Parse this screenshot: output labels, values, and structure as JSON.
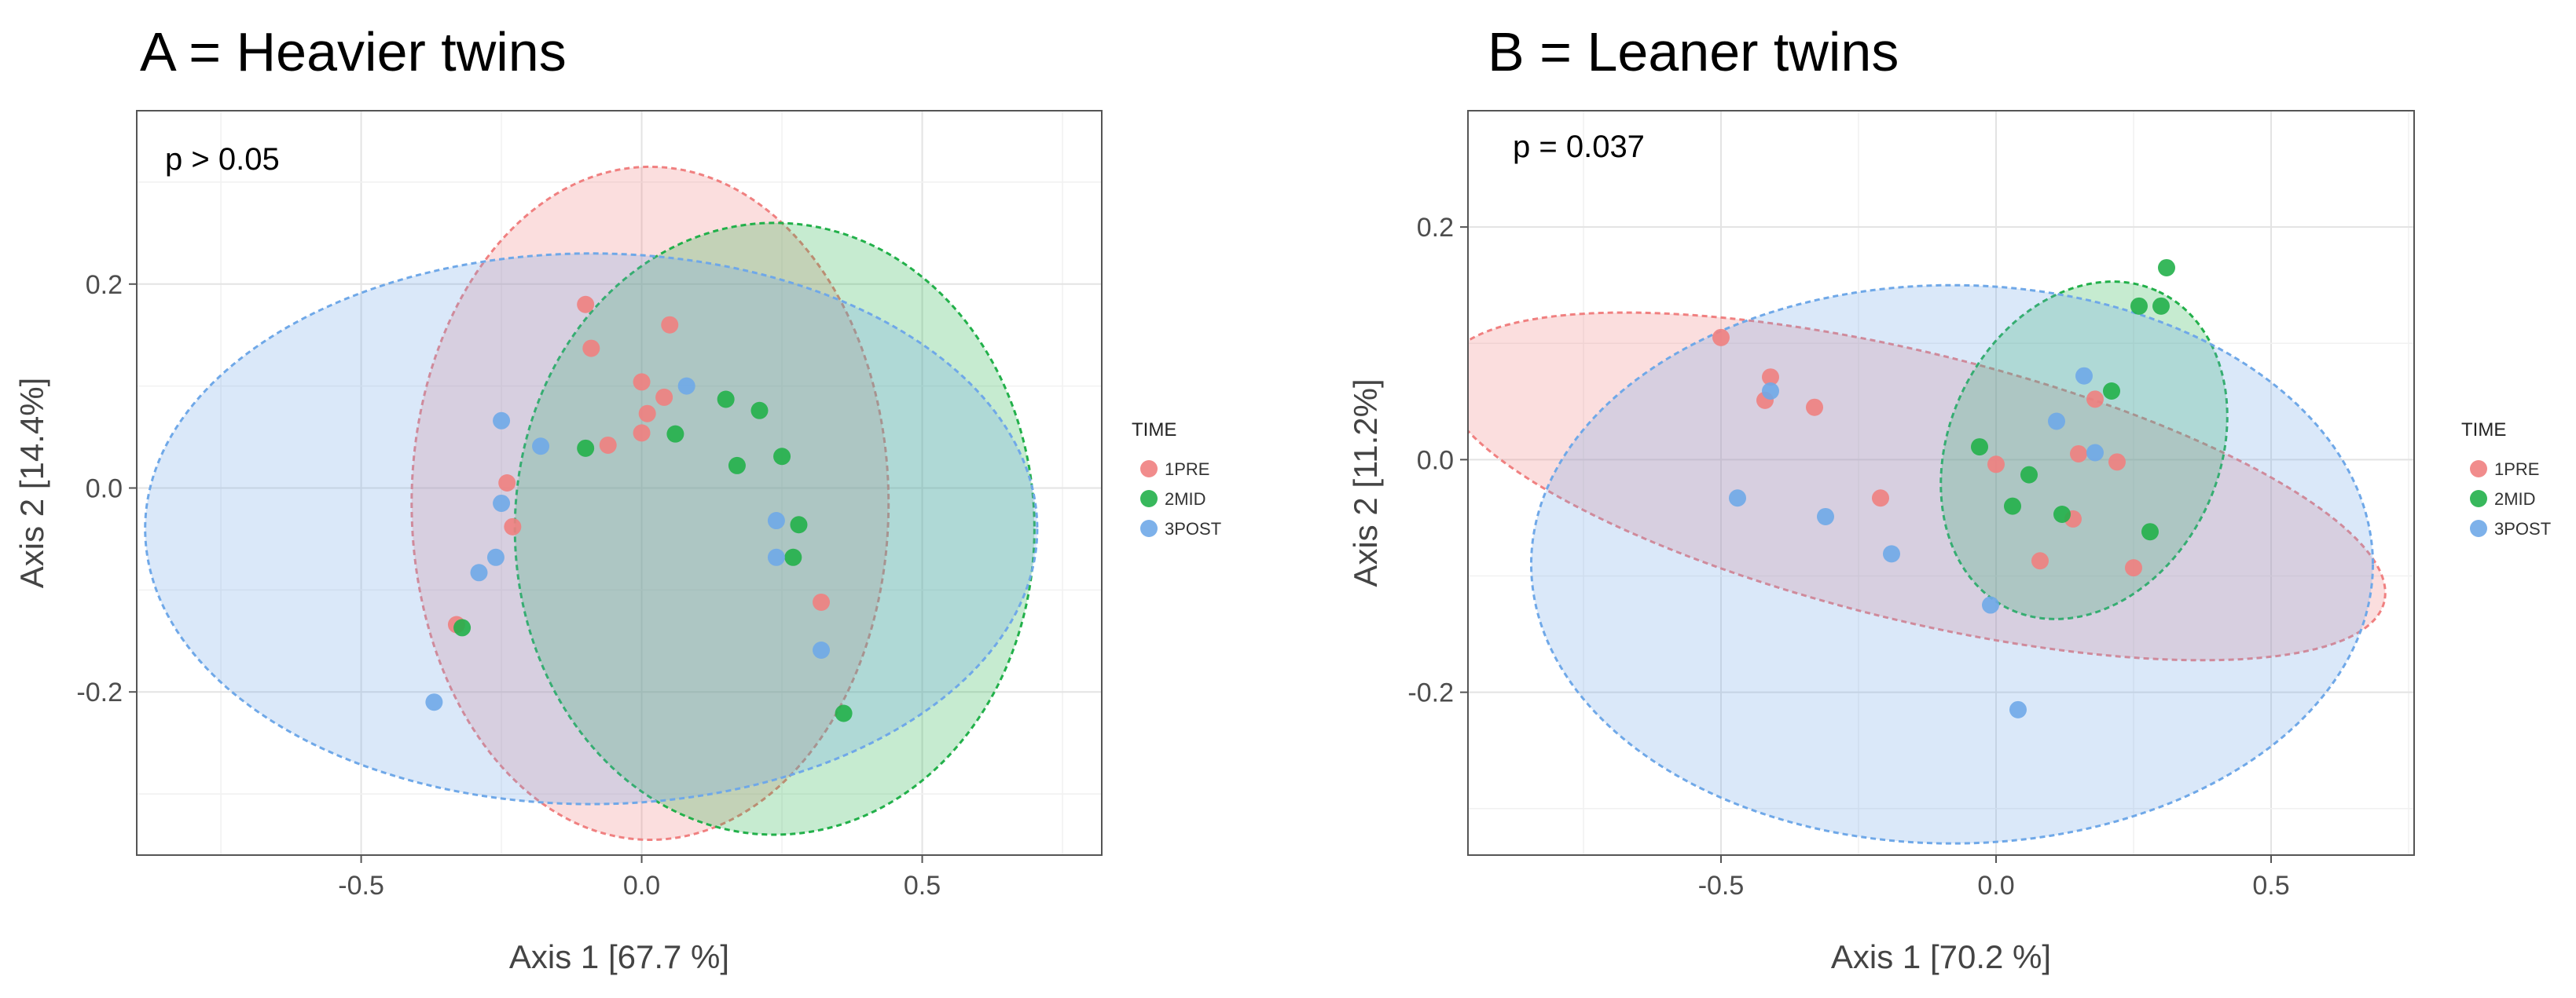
{
  "chart_data": [
    {
      "type": "scatter",
      "title": "A = Heavier twins",
      "annotation": "p > 0.05",
      "xlabel": "Axis 1 [67.7 %]",
      "ylabel": "Axis 2 [14.4%]",
      "xlim": [
        -0.9,
        0.82
      ],
      "ylim": [
        -0.36,
        0.37
      ],
      "xticks": [
        -0.5,
        0.0,
        0.5
      ],
      "yticks": [
        -0.2,
        0.0,
        0.2
      ],
      "xtick_labels": [
        "-0.5",
        "0.0",
        "0.5"
      ],
      "ytick_labels": [
        "-0.2",
        "0.0",
        "0.2"
      ],
      "grid": true,
      "legend": {
        "title": "TIME",
        "placement": "right"
      },
      "series": [
        {
          "name": "1PRE",
          "color": "#F08080",
          "points": [
            [
              -0.1,
              0.18
            ],
            [
              -0.09,
              0.137
            ],
            [
              0.05,
              0.16
            ],
            [
              0.0,
              0.104
            ],
            [
              0.04,
              0.089
            ],
            [
              0.01,
              0.073
            ],
            [
              0.0,
              0.054
            ],
            [
              -0.06,
              0.042
            ],
            [
              -0.24,
              0.005
            ],
            [
              -0.23,
              -0.038
            ],
            [
              -0.33,
              -0.134
            ],
            [
              0.32,
              -0.112
            ]
          ],
          "ellipse": {
            "cx": 0.015,
            "cy": -0.015,
            "rx": 0.425,
            "ry": 0.33,
            "angle": 0
          }
        },
        {
          "name": "2MID",
          "color": "#22B04A",
          "points": [
            [
              0.15,
              0.087
            ],
            [
              0.21,
              0.076
            ],
            [
              0.06,
              0.053
            ],
            [
              -0.1,
              0.039
            ],
            [
              0.25,
              0.031
            ],
            [
              0.17,
              0.022
            ],
            [
              0.28,
              -0.036
            ],
            [
              0.27,
              -0.068
            ],
            [
              -0.32,
              -0.137
            ],
            [
              0.36,
              -0.221
            ]
          ],
          "ellipse": {
            "cx": 0.237,
            "cy": -0.04,
            "rx": 0.463,
            "ry": 0.3,
            "angle": 0
          }
        },
        {
          "name": "3POST",
          "color": "#6FA8E8",
          "points": [
            [
              0.08,
              0.1
            ],
            [
              -0.25,
              0.066
            ],
            [
              -0.18,
              0.041
            ],
            [
              -0.25,
              -0.015
            ],
            [
              -0.26,
              -0.068
            ],
            [
              -0.29,
              -0.083
            ],
            [
              0.24,
              -0.032
            ],
            [
              0.24,
              -0.068
            ],
            [
              0.32,
              -0.159
            ],
            [
              -0.37,
              -0.21
            ]
          ],
          "ellipse": {
            "cx": -0.09,
            "cy": -0.04,
            "rx": 0.795,
            "ry": 0.27,
            "angle": 0
          }
        }
      ]
    },
    {
      "type": "scatter",
      "title": "B = Leaner twins",
      "annotation": "p = 0.037",
      "xlabel": "Axis 1 [70.2 %]",
      "ylabel": "Axis 2 [11.2%]",
      "xlim": [
        -0.96,
        0.76
      ],
      "ylim": [
        -0.34,
        0.3
      ],
      "xticks": [
        -0.5,
        0.0,
        0.5
      ],
      "yticks": [
        -0.2,
        0.0,
        0.2
      ],
      "xtick_labels": [
        "-0.5",
        "0.0",
        "0.5"
      ],
      "ytick_labels": [
        "-0.2",
        "0.0",
        "0.2"
      ],
      "grid": true,
      "legend": {
        "title": "TIME",
        "placement": "right"
      },
      "series": [
        {
          "name": "1PRE",
          "color": "#F08080",
          "points": [
            [
              -0.5,
              0.105
            ],
            [
              -0.41,
              0.071
            ],
            [
              -0.42,
              0.051
            ],
            [
              -0.33,
              0.045
            ],
            [
              0.18,
              0.052
            ],
            [
              -0.21,
              -0.033
            ],
            [
              0.0,
              -0.004
            ],
            [
              0.15,
              0.005
            ],
            [
              0.22,
              -0.002
            ],
            [
              0.14,
              -0.051
            ],
            [
              0.08,
              -0.087
            ],
            [
              0.25,
              -0.093
            ]
          ],
          "ellipse": {
            "cx": -0.15,
            "cy": -0.023,
            "rx": 0.881,
            "ry": 0.115,
            "angle": -13.8
          }
        },
        {
          "name": "2MID",
          "color": "#22B04A",
          "points": [
            [
              0.31,
              0.165
            ],
            [
              0.26,
              0.132
            ],
            [
              0.3,
              0.132
            ],
            [
              0.21,
              0.059
            ],
            [
              -0.03,
              0.011
            ],
            [
              0.06,
              -0.013
            ],
            [
              0.03,
              -0.04
            ],
            [
              0.12,
              -0.047
            ],
            [
              0.28,
              -0.062
            ]
          ],
          "ellipse": {
            "cx": 0.16,
            "cy": 0.008,
            "rx": 0.319,
            "ry": 0.116,
            "angle": 64.8
          }
        },
        {
          "name": "3POST",
          "color": "#6FA8E8",
          "points": [
            [
              -0.41,
              0.059
            ],
            [
              0.16,
              0.072
            ],
            [
              0.11,
              0.033
            ],
            [
              0.18,
              0.006
            ],
            [
              -0.47,
              -0.033
            ],
            [
              -0.31,
              -0.049
            ],
            [
              -0.19,
              -0.081
            ],
            [
              -0.01,
              -0.125
            ],
            [
              0.04,
              -0.215
            ]
          ],
          "ellipse": {
            "cx": -0.08,
            "cy": -0.09,
            "rx": 0.765,
            "ry": 0.24,
            "angle": 0
          }
        }
      ]
    }
  ]
}
